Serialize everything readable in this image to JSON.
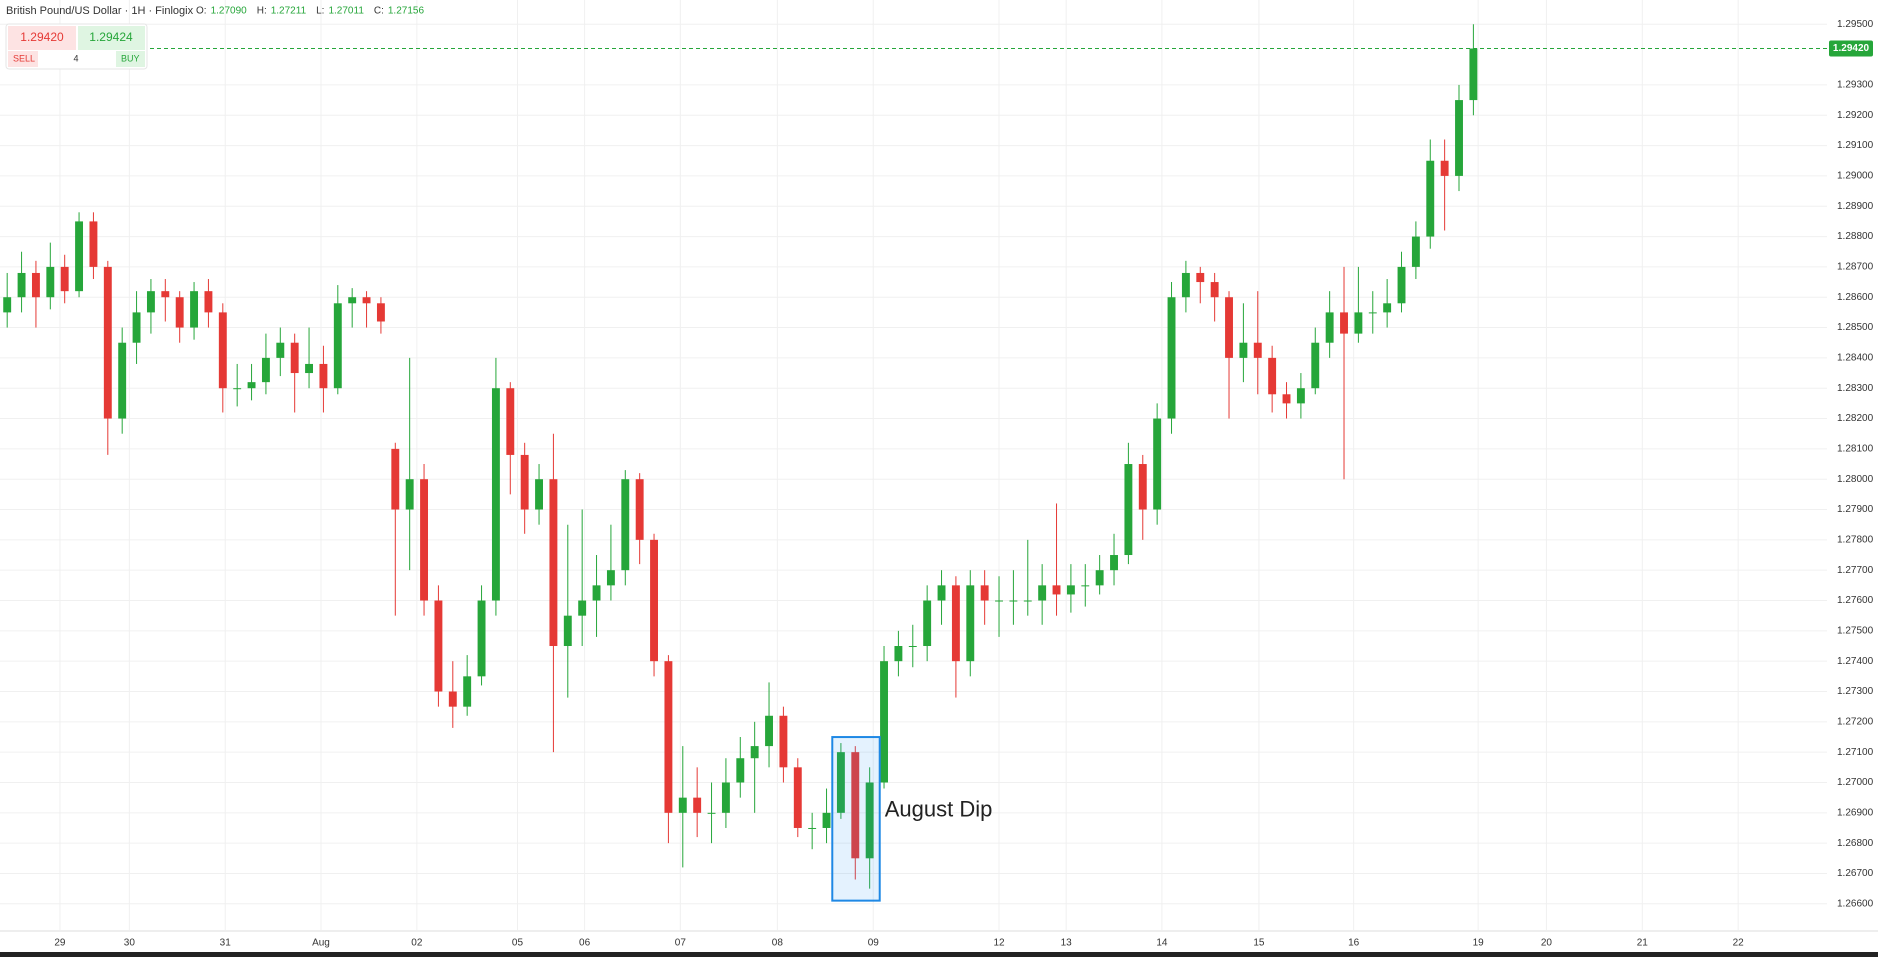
{
  "chart_data": {
    "type": "candlestick",
    "title": "British Pound/US Dollar · 1H · Finlogix",
    "ohlc_legend": [
      {
        "label": "O:",
        "value": "1.27090"
      },
      {
        "label": "H:",
        "value": "1.27211"
      },
      {
        "label": "L:",
        "value": "1.27011"
      },
      {
        "label": "C:",
        "value": "1.27156"
      }
    ],
    "trade_panel": {
      "sell_price": "1.29420",
      "sell": "SELL",
      "quantity": "4",
      "buy_price": "1.29424",
      "buy": "BUY"
    },
    "last_price": {
      "value": 1.2942,
      "label": "1.29420"
    },
    "up_color": "#26a63a",
    "down_color": "#e53935",
    "open": [
      1.2855,
      1.286,
      1.2868,
      1.286,
      1.287,
      1.2862,
      1.2885,
      1.287,
      1.282,
      1.2845,
      1.2855,
      1.2862,
      1.286,
      1.285,
      1.2862,
      1.2855,
      1.283,
      1.283,
      1.2832,
      1.284,
      1.2845,
      1.2835,
      1.2838,
      1.283,
      1.2858,
      1.286,
      1.2858,
      1.281,
      1.279,
      1.28,
      1.276,
      1.273,
      1.2725,
      1.2735,
      1.276,
      1.283,
      1.2808,
      1.279,
      1.28,
      1.2745,
      1.2755,
      1.276,
      1.2765,
      1.277,
      1.28,
      1.278,
      1.274,
      1.269,
      1.2695,
      1.269,
      1.269,
      1.27,
      1.2708,
      1.2712,
      1.2722,
      1.2705,
      1.2685,
      1.2685,
      1.269,
      1.271,
      1.2675,
      1.27,
      1.274,
      1.2745,
      1.2745,
      1.276,
      1.2765,
      1.274,
      1.2765,
      1.276,
      1.276,
      1.276,
      1.276,
      1.2765,
      1.2762,
      1.2765,
      1.2765,
      1.277,
      1.2775,
      1.2805,
      1.279,
      1.282,
      1.286,
      1.2868,
      1.2865,
      1.286,
      1.284,
      1.2845,
      1.284,
      1.2828,
      1.2825,
      1.283,
      1.2845,
      1.2855,
      1.2848,
      1.2855,
      1.2855,
      1.2858,
      1.287,
      1.288,
      1.2905,
      1.29,
      1.2925
    ],
    "high": [
      1.2868,
      1.2875,
      1.2872,
      1.2878,
      1.2874,
      1.2888,
      1.2888,
      1.2872,
      1.285,
      1.2862,
      1.2866,
      1.2866,
      1.2862,
      1.2865,
      1.2866,
      1.2858,
      1.2838,
      1.2838,
      1.2848,
      1.285,
      1.2848,
      1.285,
      1.2844,
      1.2864,
      1.2863,
      1.2862,
      1.286,
      1.2812,
      1.284,
      1.2805,
      1.2765,
      1.274,
      1.2742,
      1.2765,
      1.284,
      1.2832,
      1.2812,
      1.2805,
      1.2815,
      1.2785,
      1.279,
      1.2775,
      1.2785,
      1.2803,
      1.2802,
      1.2782,
      1.2742,
      1.2712,
      1.2705,
      1.27,
      1.2708,
      1.2715,
      1.272,
      1.2733,
      1.2725,
      1.2708,
      1.269,
      1.2698,
      1.2713,
      1.2712,
      1.2705,
      1.2745,
      1.275,
      1.2752,
      1.2765,
      1.277,
      1.2768,
      1.277,
      1.277,
      1.2768,
      1.277,
      1.278,
      1.2772,
      1.2792,
      1.2772,
      1.2772,
      1.2775,
      1.2782,
      1.2812,
      1.2808,
      1.2825,
      1.2865,
      1.2872,
      1.287,
      1.2868,
      1.2862,
      1.2858,
      1.2862,
      1.2844,
      1.2832,
      1.2835,
      1.285,
      1.2862,
      1.287,
      1.287,
      1.2862,
      1.2866,
      1.2875,
      1.2885,
      1.2912,
      1.2912,
      1.293,
      1.295
    ],
    "low": [
      1.285,
      1.2855,
      1.285,
      1.2856,
      1.2858,
      1.286,
      1.2866,
      1.2808,
      1.2815,
      1.2838,
      1.2848,
      1.2852,
      1.2845,
      1.2846,
      1.285,
      1.2822,
      1.2824,
      1.2826,
      1.2828,
      1.2834,
      1.2822,
      1.283,
      1.2822,
      1.2828,
      1.285,
      1.285,
      1.2848,
      1.2755,
      1.277,
      1.2755,
      1.2725,
      1.2718,
      1.2722,
      1.2732,
      1.2755,
      1.2795,
      1.2782,
      1.2785,
      1.271,
      1.2728,
      1.2745,
      1.2748,
      1.276,
      1.2765,
      1.2772,
      1.2735,
      1.268,
      1.2672,
      1.2682,
      1.268,
      1.2685,
      1.2695,
      1.269,
      1.2705,
      1.27,
      1.2682,
      1.2678,
      1.268,
      1.2688,
      1.2668,
      1.2665,
      1.2698,
      1.2735,
      1.2738,
      1.274,
      1.2752,
      1.2728,
      1.2735,
      1.2752,
      1.2748,
      1.2752,
      1.2755,
      1.2752,
      1.2755,
      1.2756,
      1.2758,
      1.2762,
      1.2765,
      1.2772,
      1.278,
      1.2785,
      1.2815,
      1.2855,
      1.2858,
      1.2852,
      1.282,
      1.2832,
      1.2828,
      1.2822,
      1.282,
      1.282,
      1.2828,
      1.284,
      1.28,
      1.2845,
      1.2848,
      1.285,
      1.2855,
      1.2866,
      1.2876,
      1.2882,
      1.2895,
      1.292
    ],
    "close": [
      1.286,
      1.2868,
      1.286,
      1.287,
      1.2862,
      1.2885,
      1.287,
      1.282,
      1.2845,
      1.2855,
      1.2862,
      1.286,
      1.285,
      1.2862,
      1.2855,
      1.283,
      1.283,
      1.2832,
      1.284,
      1.2845,
      1.2835,
      1.2838,
      1.283,
      1.2858,
      1.286,
      1.2858,
      1.2852,
      1.279,
      1.28,
      1.276,
      1.273,
      1.2725,
      1.2735,
      1.276,
      1.283,
      1.2808,
      1.279,
      1.28,
      1.2745,
      1.2755,
      1.276,
      1.2765,
      1.277,
      1.28,
      1.278,
      1.274,
      1.269,
      1.2695,
      1.269,
      1.269,
      1.27,
      1.2708,
      1.2712,
      1.2722,
      1.2705,
      1.2685,
      1.2685,
      1.269,
      1.271,
      1.2675,
      1.27,
      1.274,
      1.2745,
      1.2745,
      1.276,
      1.2765,
      1.274,
      1.2765,
      1.276,
      1.276,
      1.276,
      1.276,
      1.2765,
      1.2762,
      1.2765,
      1.2765,
      1.277,
      1.2775,
      1.2805,
      1.279,
      1.282,
      1.286,
      1.2868,
      1.2865,
      1.286,
      1.284,
      1.2845,
      1.284,
      1.2828,
      1.2825,
      1.283,
      1.2845,
      1.2855,
      1.2848,
      1.2855,
      1.2855,
      1.2858,
      1.287,
      1.288,
      1.2905,
      1.29,
      1.2925,
      1.2942
    ],
    "annotation": {
      "text": "August Dip",
      "x": [
        58,
        60
      ]
    },
    "xlim": [
      -0.5,
      126.6
    ],
    "xticks": [
      {
        "value": 3.67,
        "label": "29"
      },
      {
        "value": 8.5,
        "label": "30"
      },
      {
        "value": 15.17,
        "label": "31"
      },
      {
        "value": 21.83,
        "label": "Aug"
      },
      {
        "value": 28.5,
        "label": "02"
      },
      {
        "value": 35.5,
        "label": "05"
      },
      {
        "value": 40.17,
        "label": "06"
      },
      {
        "value": 46.83,
        "label": "07"
      },
      {
        "value": 53.58,
        "label": "08"
      },
      {
        "value": 60.25,
        "label": "09"
      },
      {
        "value": 69,
        "label": "12"
      },
      {
        "value": 73.67,
        "label": "13"
      },
      {
        "value": 80.33,
        "label": "14"
      },
      {
        "value": 87.08,
        "label": "15"
      },
      {
        "value": 93.67,
        "label": "16"
      },
      {
        "value": 102.33,
        "label": "19"
      },
      {
        "value": 107.08,
        "label": "20"
      },
      {
        "value": 113.75,
        "label": "21"
      },
      {
        "value": 120.42,
        "label": "22"
      }
    ],
    "ylim": [
      1.2654,
      1.2958
    ],
    "yticks": [
      {
        "value": 1.295,
        "label": "1.29500"
      },
      {
        "value": 1.293,
        "label": "1.29300"
      },
      {
        "value": 1.292,
        "label": "1.29200"
      },
      {
        "value": 1.291,
        "label": "1.29100"
      },
      {
        "value": 1.29,
        "label": "1.29000"
      },
      {
        "value": 1.289,
        "label": "1.28900"
      },
      {
        "value": 1.288,
        "label": "1.28800"
      },
      {
        "value": 1.287,
        "label": "1.28700"
      },
      {
        "value": 1.286,
        "label": "1.28600"
      },
      {
        "value": 1.285,
        "label": "1.28500"
      },
      {
        "value": 1.284,
        "label": "1.28400"
      },
      {
        "value": 1.283,
        "label": "1.28300"
      },
      {
        "value": 1.282,
        "label": "1.28200"
      },
      {
        "value": 1.281,
        "label": "1.28100"
      },
      {
        "value": 1.28,
        "label": "1.28000"
      },
      {
        "value": 1.279,
        "label": "1.27900"
      },
      {
        "value": 1.278,
        "label": "1.27800"
      },
      {
        "value": 1.277,
        "label": "1.27700"
      },
      {
        "value": 1.276,
        "label": "1.27600"
      },
      {
        "value": 1.275,
        "label": "1.27500"
      },
      {
        "value": 1.274,
        "label": "1.27400"
      },
      {
        "value": 1.273,
        "label": "1.27300"
      },
      {
        "value": 1.272,
        "label": "1.27200"
      },
      {
        "value": 1.271,
        "label": "1.27100"
      },
      {
        "value": 1.27,
        "label": "1.27000"
      },
      {
        "value": 1.269,
        "label": "1.26900"
      },
      {
        "value": 1.268,
        "label": "1.26800"
      },
      {
        "value": 1.267,
        "label": "1.26700"
      },
      {
        "value": 1.266,
        "label": "1.26600"
      }
    ],
    "grid": true
  }
}
